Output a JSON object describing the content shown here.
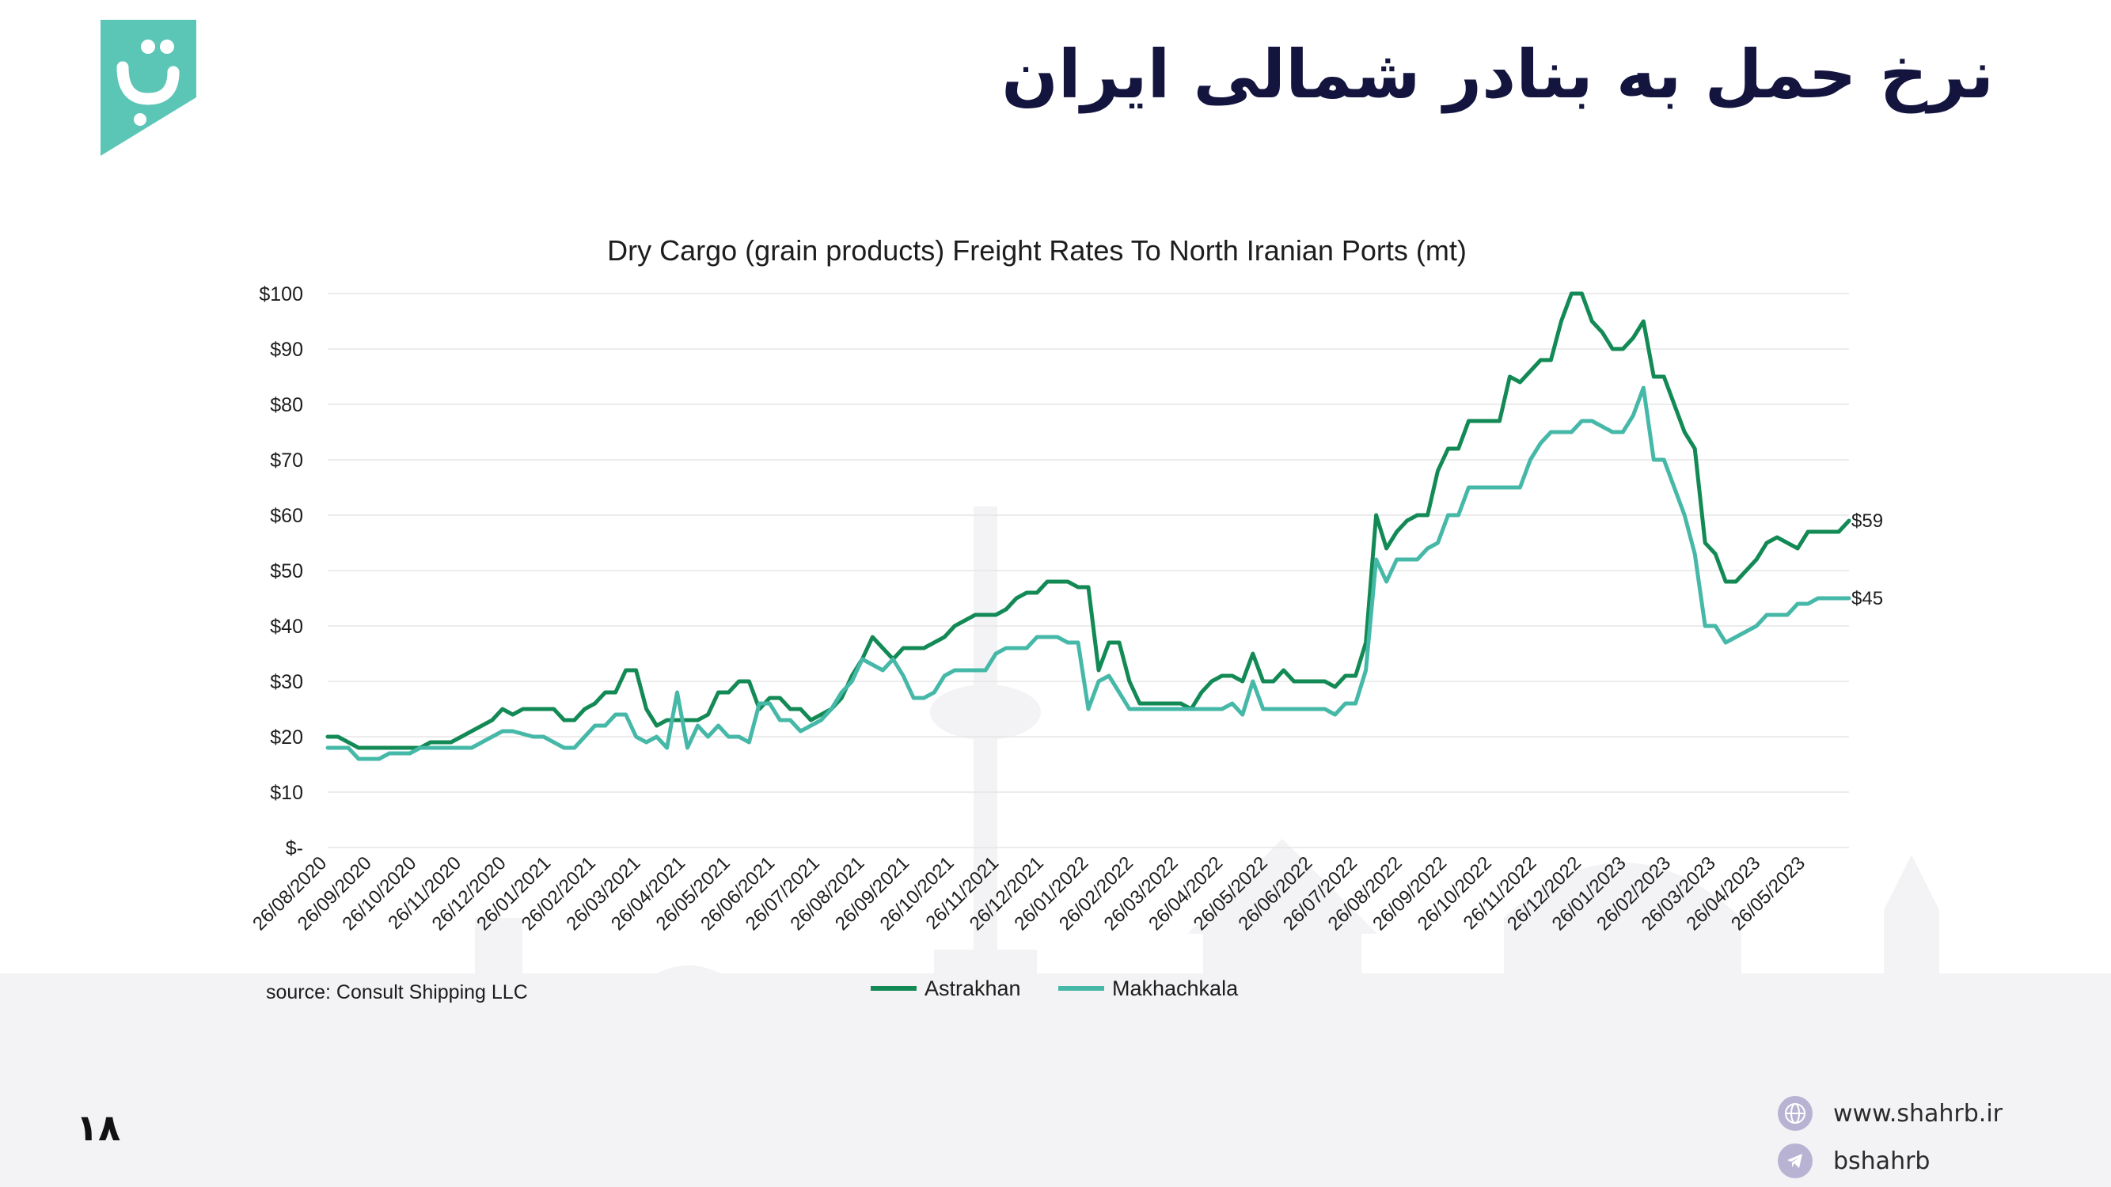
{
  "page": {
    "title": "نرخ حمل به بنادر شمالی ایران",
    "page_number": "۱۸",
    "source": "source: Consult Shipping LLC",
    "contact": {
      "website": "www.shahrb.ir",
      "telegram": "bshahrb",
      "website_icon": "globe-icon",
      "telegram_icon": "telegram-icon"
    },
    "colors": {
      "title": "#14153f",
      "logo": "#5cc6b6"
    }
  },
  "chart_data": {
    "type": "line",
    "title": "Dry Cargo (grain products) Freight Rates To North Iranian Ports (mt)",
    "xlabel": "",
    "ylabel": "",
    "ylim": [
      0,
      100
    ],
    "yticks": [
      "$-",
      "$10",
      "$20",
      "$30",
      "$40",
      "$50",
      "$60",
      "$70",
      "$80",
      "$90",
      "$100"
    ],
    "x_tick_labels": [
      "26/08/2020",
      "26/09/2020",
      "26/10/2020",
      "26/11/2020",
      "26/12/2020",
      "26/01/2021",
      "26/02/2021",
      "26/03/2021",
      "26/04/2021",
      "26/05/2021",
      "26/06/2021",
      "26/07/2021",
      "26/08/2021",
      "26/09/2021",
      "26/10/2021",
      "26/11/2021",
      "26/12/2021",
      "26/01/2022",
      "26/02/2022",
      "26/03/2022",
      "26/04/2022",
      "26/05/2022",
      "26/06/2022",
      "26/07/2022",
      "26/08/2022",
      "26/09/2022",
      "26/10/2022",
      "26/11/2022",
      "26/12/2022",
      "26/01/2023",
      "26/02/2023",
      "26/03/2023",
      "26/04/2023",
      "26/05/2023"
    ],
    "legend_position": "bottom-center",
    "grid": true,
    "end_labels": [
      "$59",
      "$45"
    ],
    "series": [
      {
        "name": "Astrakhan",
        "color": "#138a55",
        "values": [
          20,
          20,
          19,
          18,
          18,
          18,
          18,
          18,
          18,
          18,
          19,
          19,
          19,
          20,
          21,
          22,
          23,
          25,
          24,
          25,
          25,
          25,
          25,
          23,
          23,
          25,
          26,
          28,
          28,
          32,
          32,
          25,
          22,
          23,
          23,
          23,
          23,
          24,
          28,
          28,
          30,
          30,
          25,
          27,
          27,
          25,
          25,
          23,
          24,
          25,
          27,
          31,
          34,
          38,
          36,
          34,
          36,
          36,
          36,
          37,
          38,
          40,
          41,
          42,
          42,
          42,
          43,
          45,
          46,
          46,
          48,
          48,
          48,
          47,
          47,
          32,
          37,
          37,
          30,
          26,
          26,
          26,
          26,
          26,
          25,
          28,
          30,
          31,
          31,
          30,
          35,
          30,
          30,
          32,
          30,
          30,
          30,
          30,
          29,
          31,
          31,
          37,
          60,
          54,
          57,
          59,
          60,
          60,
          68,
          72,
          72,
          77,
          77,
          77,
          77,
          85,
          84,
          86,
          88,
          88,
          95,
          100,
          100,
          95,
          93,
          90,
          90,
          92,
          95,
          85,
          85,
          80,
          75,
          72,
          55,
          53,
          48,
          48,
          50,
          52,
          55,
          56,
          55,
          54,
          57,
          57,
          57,
          57,
          59
        ]
      },
      {
        "name": "Makhachkala",
        "color": "#46b8a8",
        "values": [
          18,
          18,
          18,
          16,
          16,
          16,
          17,
          17,
          17,
          18,
          18,
          18,
          18,
          18,
          18,
          19,
          20,
          21,
          21,
          20.5,
          20,
          20,
          19,
          18,
          18,
          20,
          22,
          22,
          24,
          24,
          20,
          19,
          20,
          18,
          28,
          18,
          22,
          20,
          22,
          20,
          20,
          19,
          26,
          26,
          23,
          23,
          21,
          22,
          23,
          25,
          28,
          30,
          34,
          33,
          32,
          34,
          31,
          27,
          27,
          28,
          31,
          32,
          32,
          32,
          32,
          35,
          36,
          36,
          36,
          38,
          38,
          38,
          37,
          37,
          25,
          30,
          31,
          28,
          25,
          25,
          25,
          25,
          25,
          25,
          25,
          25,
          25,
          25,
          26,
          24,
          30,
          25,
          25,
          25,
          25,
          25,
          25,
          25,
          24,
          26,
          26,
          32,
          52,
          48,
          52,
          52,
          52,
          54,
          55,
          60,
          60,
          65,
          65,
          65,
          65,
          65,
          65,
          70,
          73,
          75,
          75,
          75,
          77,
          77,
          76,
          75,
          75,
          78,
          83,
          70,
          70,
          65,
          60,
          53,
          40,
          40,
          37,
          38,
          39,
          40,
          42,
          42,
          42,
          44,
          44,
          45,
          45,
          45,
          45
        ]
      }
    ]
  }
}
